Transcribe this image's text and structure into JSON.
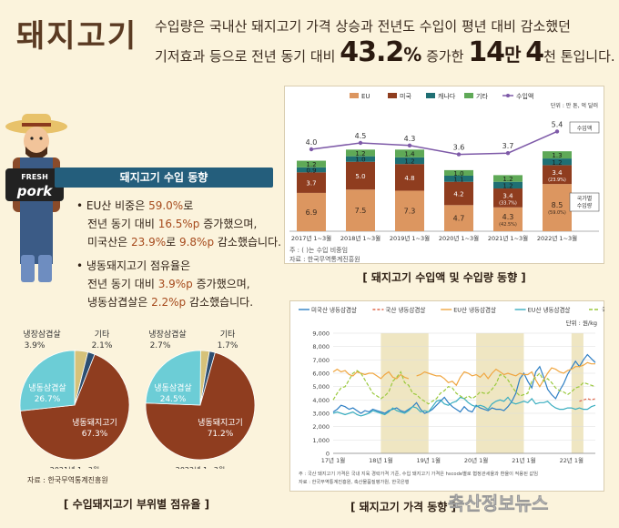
{
  "header": {
    "title": "돼지고기",
    "line1": "수입량은 국내산 돼지고기 가격 상승과 전년도 수입이 평년 대비 감소했던",
    "line2_a": "기저효과 등으로 전년 동기 대비",
    "line2_pct": "43.2",
    "line2_pct_unit": "%",
    "line2_b": "증가한",
    "line2_num1": "14",
    "line2_man": "만",
    "line2_num2": "4",
    "line2_c": "천 톤입니다."
  },
  "mascot": {
    "sign_top": "FRESH",
    "sign_main": "pork"
  },
  "trend": {
    "heading": "돼지고기 수입 동향",
    "b1_l1_a": "• EU산 비중은 ",
    "b1_l1_v": "59.0%",
    "b1_l1_b": "로",
    "b1_l2_a": "전년 동기 대비 ",
    "b1_l2_v": "16.5%p",
    "b1_l2_b": " 증가했으며,",
    "b1_l3_a": "미국산은 ",
    "b1_l3_v1": "23.9%",
    "b1_l3_b": "로 ",
    "b1_l3_v2": "9.8%p",
    "b1_l3_c": " 감소했습니다.",
    "b2_l1": "• 냉동돼지고기 점유율은",
    "b2_l2_a": "전년 동기 대비 ",
    "b2_l2_v": "3.9%p",
    "b2_l2_b": " 증가했으며,",
    "b2_l3_a": "냉동삼겹살은 ",
    "b2_l3_v": "2.2%p",
    "b2_l3_b": " 감소했습니다."
  },
  "bar_panel": {
    "unit": "단위 : 만 톤, 억 달러",
    "tag_amount": "수입액",
    "tag_share_l1": "국가별",
    "tag_share_l2": "수입량",
    "note1": "주 : (   )는 수입 비중임",
    "note2": "자료 : 한국무역통계진흥원",
    "caption": "[ 돼지고기 수입액 및 수입량 동향 ]"
  },
  "pie_panel": {
    "source": "자료 : 한국무역통계진흥원",
    "caption": "[ 수입돼지고기 부위별 점유율 ]"
  },
  "line_panel": {
    "unit": "단위 : 원/kg",
    "note1": "주 : 국산 돼지고기 가격은 국내 지육 경락가격 기준, 수입 돼지고기 가격은 hscode별로 협정관세율과 환율이 적용된 값임",
    "note2": "자료 : 한국무역통계진흥원, 축산물품질평가원, 한국은행",
    "caption": "[ 돼지고기 가격 동향 ]"
  },
  "watermark": "축산정보뉴스",
  "colors": {
    "eu": "#dc9660",
    "us": "#8f3d1f",
    "ca": "#1f6f73",
    "etc": "#5fa957",
    "amount": "#7e5aa8"
  },
  "chart_data": [
    {
      "type": "bar",
      "categories": [
        "2017년 1~3월",
        "2018년 1~3월",
        "2019년 1~3월",
        "2020년 1~3월",
        "2021년 1~3월",
        "2022년 1~3월"
      ],
      "series": [
        {
          "name": "EU",
          "values": [
            6.9,
            7.5,
            7.3,
            4.7,
            4.3,
            8.5
          ],
          "labels": [
            "6.9",
            "7.5",
            "7.3",
            "4.7",
            "4.3",
            "8.5"
          ],
          "shares": [
            "",
            "",
            "",
            "",
            "(42.5%)",
            "(59.0%)"
          ]
        },
        {
          "name": "미국",
          "values": [
            3.7,
            5.0,
            4.8,
            4.2,
            3.4,
            3.4
          ],
          "labels": [
            "3.7",
            "5.0",
            "4.8",
            "4.2",
            "3.4",
            "3.4"
          ],
          "shares": [
            "",
            "",
            "",
            "",
            "(33.7%)",
            "(23.9%)"
          ]
        },
        {
          "name": "캐나다",
          "values": [
            0.9,
            1.0,
            1.2,
            1.1,
            1.2,
            1.2
          ],
          "labels": [
            "0.9",
            "1.0",
            "1.2",
            "1.1",
            "1.2",
            "1.2"
          ],
          "shares": [
            "",
            "",
            "",
            "",
            "",
            ""
          ]
        },
        {
          "name": "기타",
          "values": [
            1.2,
            1.2,
            1.4,
            1.0,
            1.2,
            1.3
          ],
          "labels": [
            "1.2",
            "1.2",
            "1.4",
            "1.0",
            "1.2",
            "1.3"
          ],
          "shares": [
            "",
            "",
            "",
            "",
            "",
            ""
          ]
        }
      ],
      "line": {
        "name": "수입액",
        "values": [
          4.0,
          4.5,
          4.3,
          3.6,
          3.7,
          5.4
        ],
        "labels": [
          "4.0",
          "4.5",
          "4.3",
          "3.6",
          "3.7",
          "5.4"
        ]
      },
      "ylim": [
        0,
        16
      ]
    },
    {
      "type": "pie",
      "title": "2021년 1~3월",
      "slices": [
        {
          "name": "냉동돼지고기",
          "value": 67.3,
          "label": "67.3%",
          "color": "#8f3d1f"
        },
        {
          "name": "냉동삼겹살",
          "value": 26.7,
          "label": "26.7%",
          "color": "#6ccdd6"
        },
        {
          "name": "냉장삼겹살",
          "value": 3.9,
          "label": "3.9%",
          "color": "#d6c27a"
        },
        {
          "name": "기타",
          "value": 2.1,
          "label": "2.1%",
          "color": "#2d4f72"
        }
      ]
    },
    {
      "type": "pie",
      "title": "2022년 1~3월",
      "slices": [
        {
          "name": "냉동돼지고기",
          "value": 71.2,
          "label": "71.2%",
          "color": "#8f3d1f"
        },
        {
          "name": "냉동삼겹살",
          "value": 24.5,
          "label": "24.5%",
          "color": "#6ccdd6"
        },
        {
          "name": "냉장삼겹살",
          "value": 2.7,
          "label": "2.7%",
          "color": "#d6c27a"
        },
        {
          "name": "기타",
          "value": 1.7,
          "label": "1.7%",
          "color": "#2d4f72"
        }
      ]
    },
    {
      "type": "line",
      "x_ticks": [
        "17년 1월",
        "18년 1월",
        "19년 1월",
        "20년 1월",
        "21년 1월",
        "22년 1월"
      ],
      "y_ticks": [
        0,
        1000,
        2000,
        3000,
        4000,
        5000,
        6000,
        7000,
        8000,
        9000
      ],
      "ylim": [
        0,
        9000
      ],
      "shaded_periods": [
        [
          "2018-01",
          "2019-01"
        ],
        [
          "2020-01",
          "2021-01"
        ],
        [
          "2022-01",
          "2022-04"
        ]
      ],
      "series": [
        {
          "name": "미국산 냉동삼겹살",
          "color": "#2e7fc4",
          "dash": "",
          "values": [
            3100,
            3300,
            3600,
            3500,
            3300,
            3400,
            3200,
            3000,
            3200,
            3100,
            3300,
            3200,
            3100,
            3000,
            3200,
            3300,
            3400,
            3200,
            3100,
            3300,
            3500,
            3800,
            3300,
            3000,
            3100,
            3300,
            3600,
            3900,
            4200,
            3800,
            3500,
            3300,
            3100,
            3500,
            3200,
            3100,
            3600,
            3400,
            3300,
            3200,
            3400,
            3300,
            3300,
            3200,
            3500,
            3900,
            4500,
            5600,
            6000,
            5400,
            4900,
            6100,
            6500,
            5700,
            4800,
            4400,
            4100,
            4700,
            5200,
            5900,
            6400,
            6900,
            6500,
            7000,
            7400,
            7100,
            6800
          ]
        },
        {
          "name": "국산 냉동삼겹살",
          "color": "#e06a4f",
          "dash": "3,2",
          "values": [
            null,
            null,
            null,
            null,
            null,
            null,
            null,
            null,
            null,
            null,
            null,
            null,
            null,
            null,
            null,
            null,
            null,
            null,
            null,
            null,
            null,
            null,
            null,
            null,
            null,
            null,
            null,
            null,
            null,
            null,
            null,
            null,
            null,
            null,
            null,
            null,
            null,
            null,
            null,
            null,
            null,
            null,
            null,
            null,
            null,
            null,
            null,
            null,
            null,
            null,
            null,
            null,
            null,
            null,
            null,
            null,
            null,
            null,
            null,
            null,
            null,
            null,
            3900,
            4000,
            4100,
            4000,
            4100
          ]
        },
        {
          "name": "EU산 냉동삼겹살",
          "color": "#f0a640",
          "dash": "",
          "values": [
            6100,
            6300,
            6100,
            6200,
            5900,
            5800,
            6100,
            6000,
            5900,
            6000,
            6000,
            5800,
            5600,
            5900,
            6100,
            5700,
            5600,
            5900,
            5700,
            5600,
            null,
            5800,
            5900,
            6100,
            6000,
            5900,
            5800,
            5800,
            5600,
            5300,
            5400,
            5100,
            5700,
            6100,
            6000,
            5800,
            5900,
            5700,
            6000,
            5600,
            6000,
            6300,
            6100,
            5900,
            6000,
            5900,
            5800,
            6000,
            5900,
            5900,
            6100,
            5500,
            5000,
            5500,
            6000,
            6400,
            6300,
            6100,
            6000,
            6200,
            6300,
            6500,
            6500,
            6600,
            6800,
            6700,
            6700
          ]
        },
        {
          "name": "EU산 냉동삼겹살",
          "color": "#3aaec0",
          "dash": "",
          "values": [
            3000,
            3100,
            3000,
            2900,
            3000,
            3100,
            2900,
            2800,
            2900,
            3000,
            3200,
            3100,
            3000,
            2900,
            3100,
            3400,
            3200,
            3100,
            3000,
            3200,
            3500,
            3400,
            3100,
            3200,
            3100,
            3500,
            3900,
            4000,
            3700,
            3600,
            3800,
            3900,
            4200,
            4100,
            3800,
            3600,
            3500,
            3600,
            3500,
            3300,
            3700,
            3900,
            4000,
            3900,
            4200,
            3800,
            3700,
            3800,
            3900,
            3800,
            4100,
            3700,
            3800,
            3800,
            3900,
            3600,
            3400,
            3300,
            3300,
            3400,
            3400,
            3300,
            3400,
            3300,
            3300,
            3500,
            3600
          ]
        },
        {
          "name": "국산 돼지고기",
          "color": "#9bc93e",
          "dash": "4,2",
          "values": [
            4000,
            4500,
            4900,
            5000,
            5500,
            6000,
            6200,
            6000,
            5500,
            5000,
            4500,
            4300,
            4100,
            4300,
            4600,
            5400,
            5700,
            6100,
            5300,
            5100,
            4500,
            4400,
            4100,
            3900,
            3700,
            3900,
            4100,
            4500,
            4700,
            5000,
            4900,
            4500,
            4300,
            4100,
            4300,
            4100,
            4300,
            4600,
            4500,
            4500,
            4800,
            5200,
            5900,
            5800,
            5500,
            5000,
            4600,
            4300,
            4400,
            4500,
            5400,
            5700,
            6000,
            5400,
            5600,
            5300,
            4900,
            4700,
            4600,
            4400,
            4600,
            4900,
            5000,
            5300,
            5200,
            5100,
            5000
          ]
        }
      ]
    }
  ]
}
